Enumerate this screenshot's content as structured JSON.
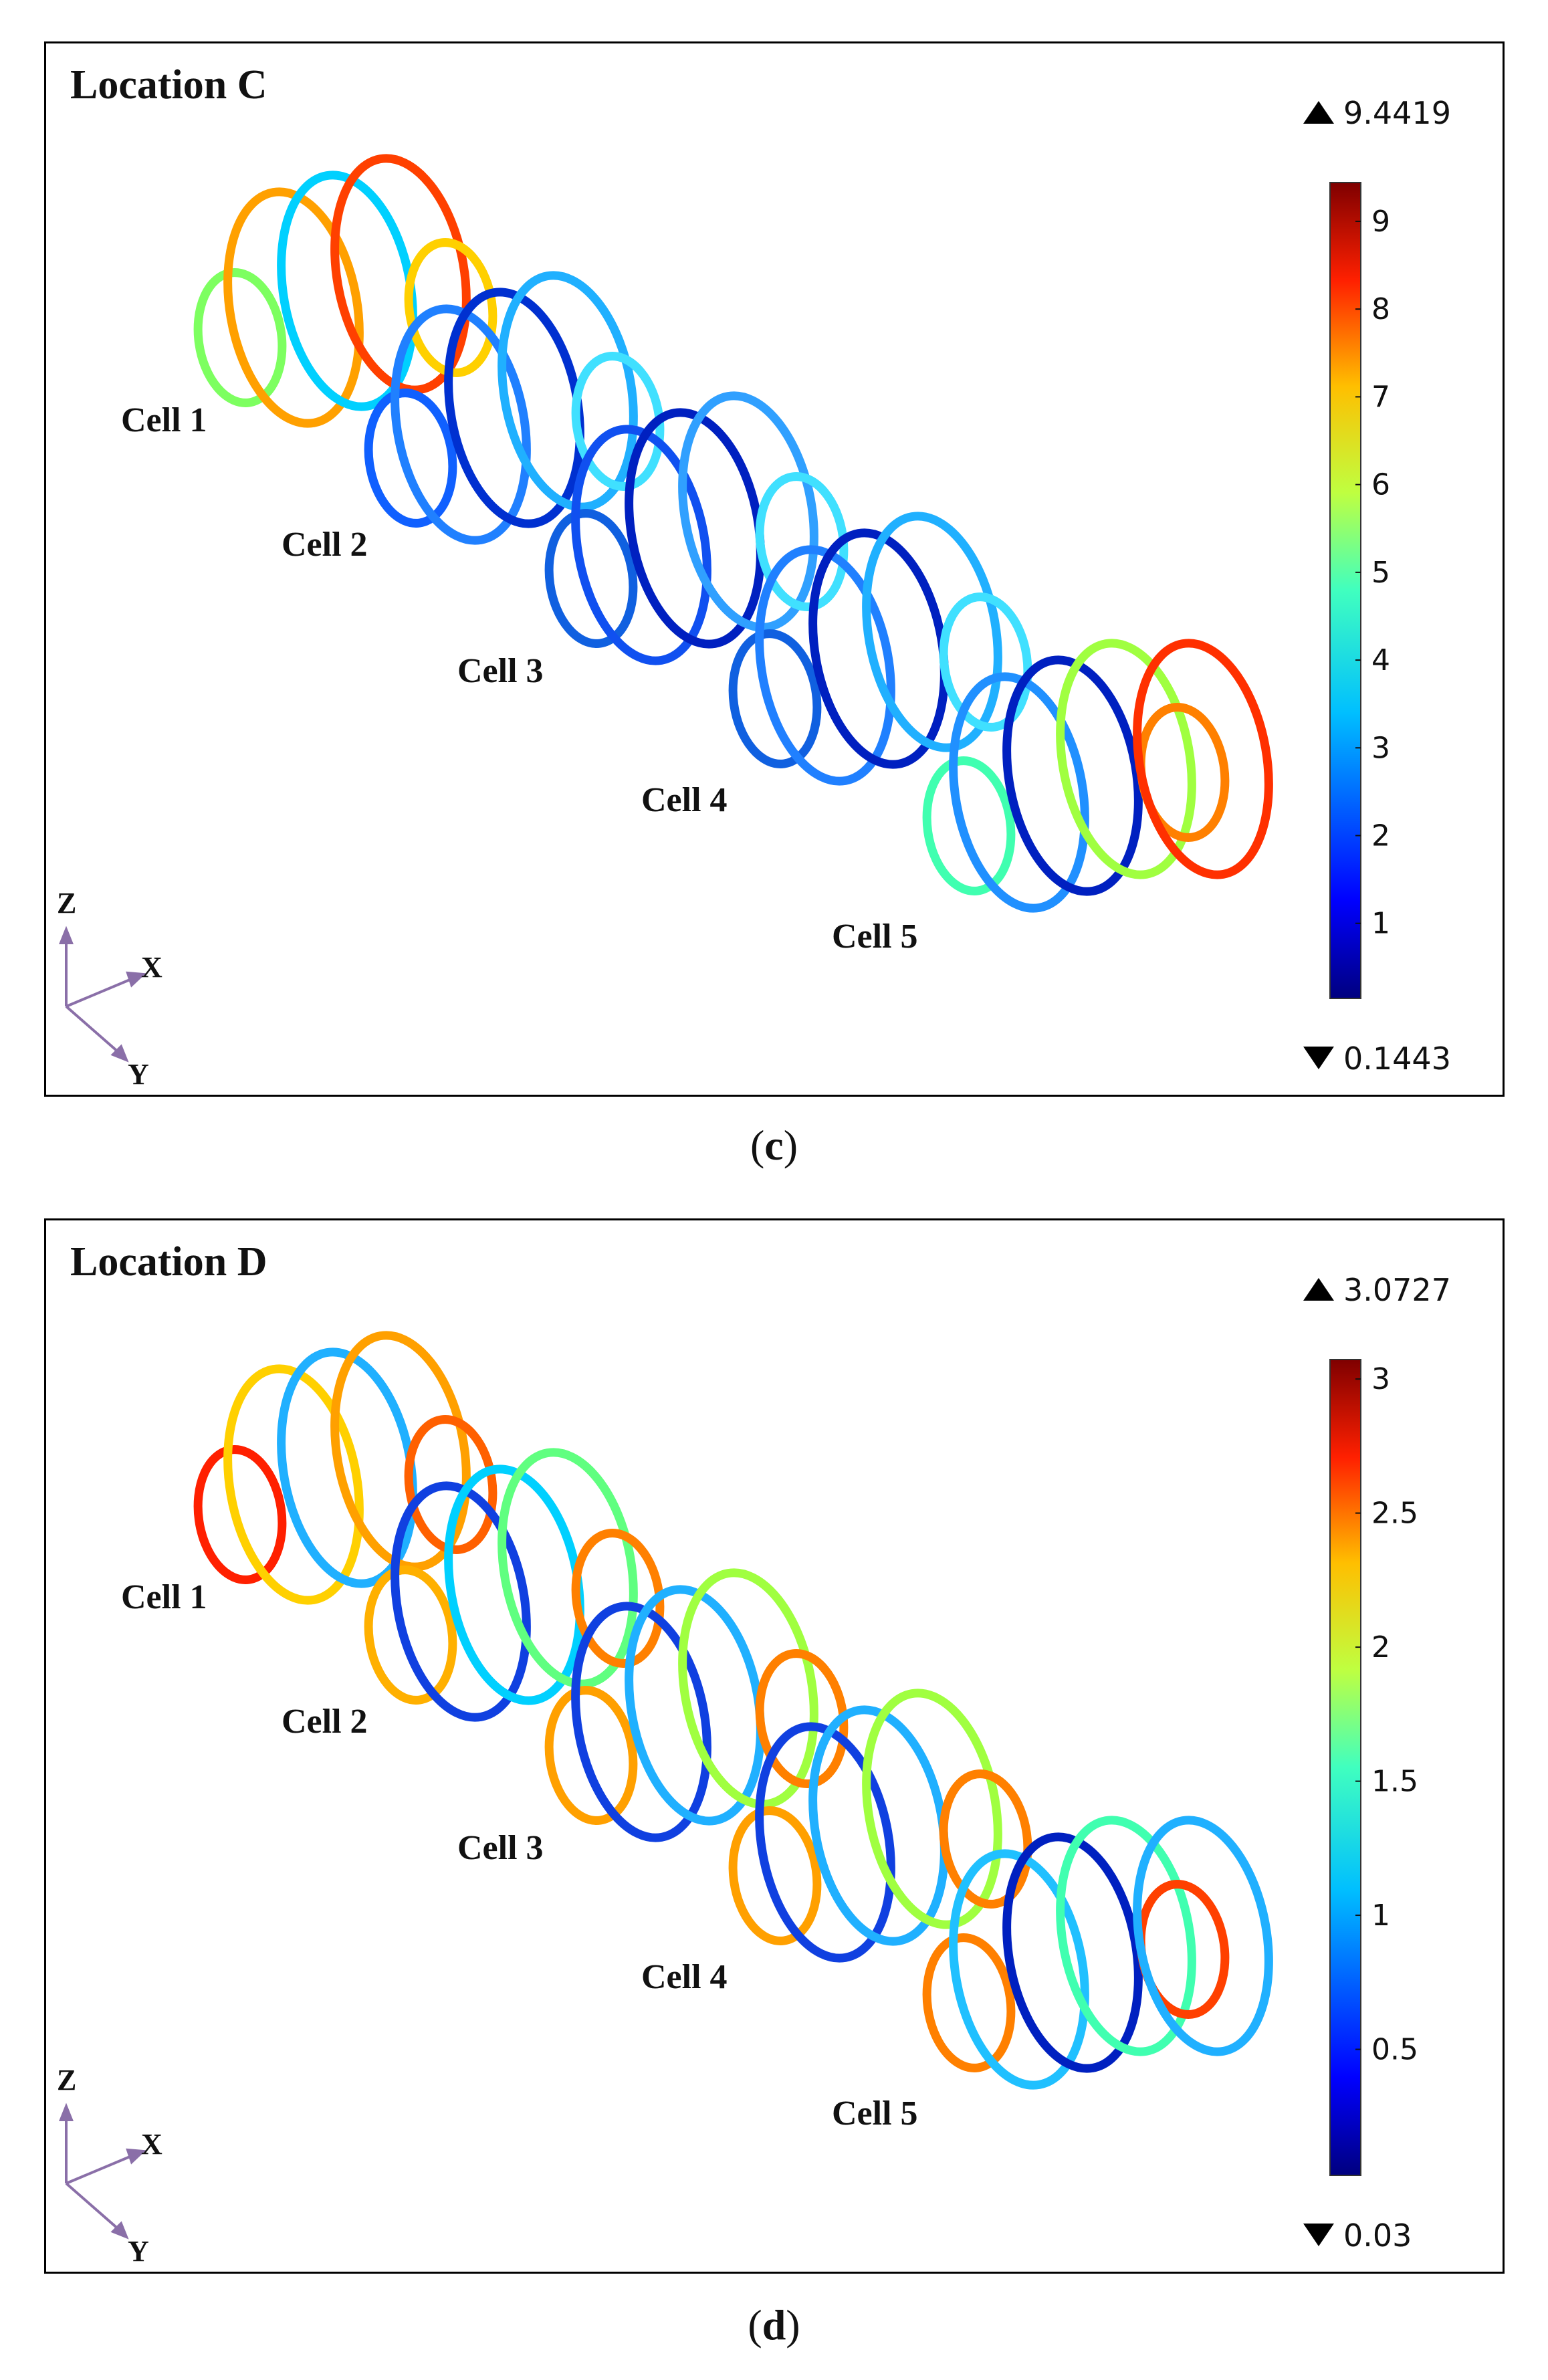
{
  "figures": [
    {
      "title": "Location C",
      "caption_letter": "c",
      "colorbar": {
        "max_label": "9.4419",
        "min_label": "0.1443",
        "min": 0.1443,
        "max": 9.4419,
        "ticks": [
          "1",
          "2",
          "3",
          "4",
          "5",
          "6",
          "7",
          "8",
          "9"
        ],
        "tick_values": [
          1,
          2,
          3,
          4,
          5,
          6,
          7,
          8,
          9
        ]
      },
      "cells": [
        "Cell 1",
        "Cell 2",
        "Cell 3",
        "Cell 4",
        "Cell 5"
      ],
      "axes": {
        "z": "Z",
        "x": "X",
        "y": "Y"
      }
    },
    {
      "title": "Location D",
      "caption_letter": "d",
      "colorbar": {
        "max_label": "3.0727",
        "min_label": "0.03",
        "min": 0.03,
        "max": 3.0727,
        "ticks": [
          "0.5",
          "1",
          "1.5",
          "2",
          "2.5",
          "3"
        ],
        "tick_values": [
          0.5,
          1,
          1.5,
          2,
          2.5,
          3
        ]
      },
      "cells": [
        "Cell 1",
        "Cell 2",
        "Cell 3",
        "Cell 4",
        "Cell 5"
      ],
      "axes": {
        "z": "Z",
        "x": "X",
        "y": "Y"
      }
    }
  ],
  "colormap": [
    "#00007f",
    "#0000ff",
    "#007fff",
    "#00ffff",
    "#7fff7f",
    "#ffff00",
    "#ff7f00",
    "#ff0000",
    "#7f0000"
  ],
  "axis_color": "#8a6fa8"
}
